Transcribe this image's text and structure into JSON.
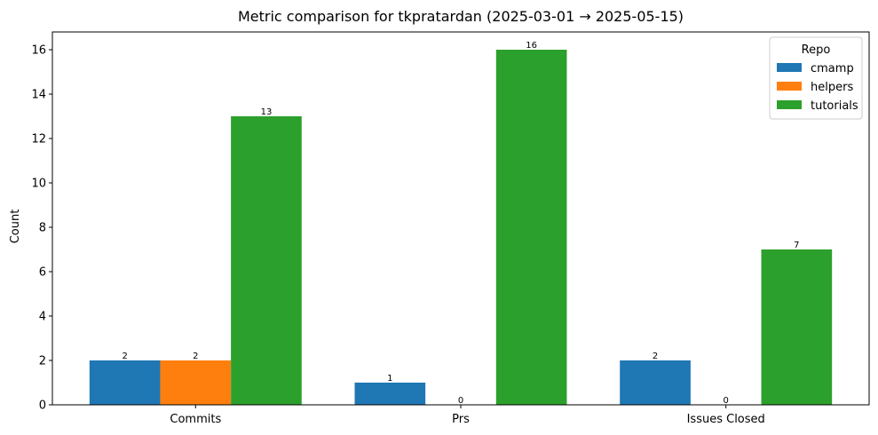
{
  "chart_data": {
    "type": "bar",
    "title": "Metric comparison for tkpratardan (2025-03-01 → 2025-05-15)",
    "xlabel": "",
    "ylabel": "Count",
    "categories": [
      "Commits",
      "Prs",
      "Issues Closed"
    ],
    "series": [
      {
        "name": "cmamp",
        "values": [
          2,
          1,
          2
        ],
        "color": "#1f77b4"
      },
      {
        "name": "helpers",
        "values": [
          2,
          0,
          0
        ],
        "color": "#ff7f0e"
      },
      {
        "name": "tutorials",
        "values": [
          13,
          16,
          7
        ],
        "color": "#2ca02c"
      }
    ],
    "ylim": [
      0,
      16.8
    ],
    "yticks": [
      0,
      2,
      4,
      6,
      8,
      10,
      12,
      14,
      16
    ],
    "legend": {
      "title": "Repo",
      "placement": "top-right"
    },
    "grid": false
  }
}
